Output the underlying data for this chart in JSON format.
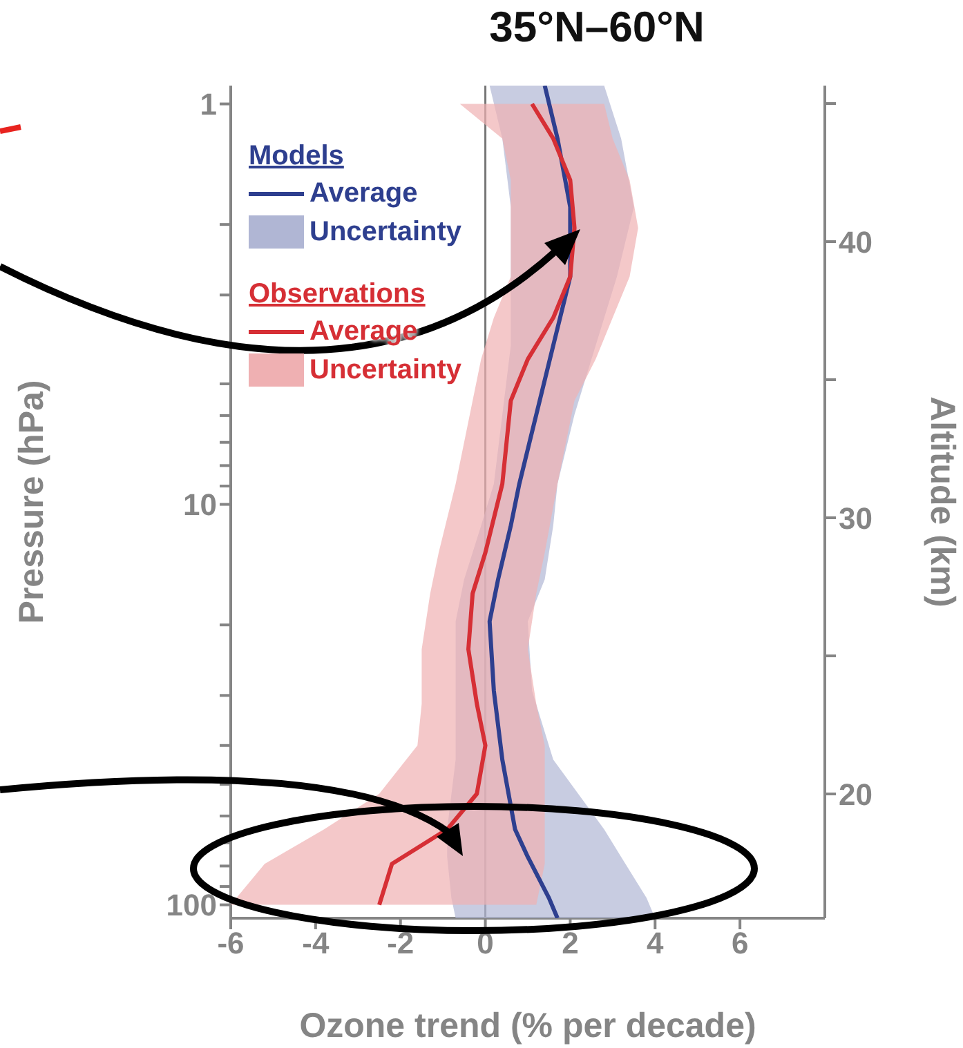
{
  "chart_data": {
    "type": "line",
    "orientation": "horizontal",
    "title": "35°N–60°N",
    "xlabel": "Ozone trend (% per decade)",
    "ylabel": "Pressure (hPa)",
    "y2label": "Altitude (km)",
    "annotations": [
      "Models",
      "Uncertainty",
      "Observations",
      "Uncertainty"
    ],
    "xlim": [
      -6,
      8
    ],
    "xticks": [
      -6,
      -4,
      -2,
      0,
      2,
      4,
      6
    ],
    "ylim": [
      108,
      0.9
    ],
    "log": "y",
    "yticks": [
      1,
      {
        "value": 2,
        "label": null
      },
      {
        "value": 3,
        "label": null
      },
      {
        "value": 4,
        "label": null
      },
      {
        "value": 5,
        "label": null
      },
      {
        "value": 6,
        "label": null
      },
      {
        "value": 7,
        "label": null
      },
      {
        "value": 8,
        "label": null
      },
      {
        "value": 9,
        "label": null
      },
      10,
      {
        "value": 20,
        "label": null
      },
      {
        "value": 30,
        "label": null
      },
      {
        "value": 40,
        "label": null
      },
      {
        "value": 50,
        "label": null
      },
      {
        "value": 60,
        "label": null
      },
      {
        "value": 70,
        "label": null
      },
      {
        "value": 80,
        "label": null
      },
      {
        "value": 90,
        "label": null
      },
      100
    ],
    "y2lim": [
      15.5,
      45.65
    ],
    "y2ticks": [
      20,
      {
        "value": 25,
        "label": null
      },
      30,
      {
        "value": 35,
        "label": null
      },
      40,
      {
        "value": 45,
        "label": null
      }
    ],
    "legend": "top left",
    "grid": false,
    "ref_lines": [
      {
        "axis": "x",
        "value": 0,
        "color": "#777777"
      }
    ],
    "series": [
      {
        "name": "Average",
        "color": "#2e3f8f",
        "x": [
          0.9,
          1.22,
          1.81,
          2.7,
          4.01,
          5.97,
          8.89,
          11.3,
          15.4,
          19.6,
          29.2,
          43.4,
          64.8,
          75.9,
          96.2,
          108
        ],
        "values": [
          1.4,
          1.7,
          2.0,
          2.0,
          1.6,
          1.2,
          0.8,
          0.6,
          0.3,
          0.1,
          0.2,
          0.4,
          0.7,
          1.0,
          1.5,
          1.7
        ],
        "lower": [
          0.1,
          0.4,
          0.6,
          0.6,
          0.6,
          0.4,
          0.2,
          -0.1,
          -0.5,
          -0.7,
          -0.7,
          -0.7,
          -0.9,
          -0.9,
          -0.8,
          -0.7
        ],
        "upper": [
          2.8,
          3.2,
          3.5,
          3.1,
          2.6,
          2.1,
          1.7,
          1.6,
          1.4,
          1.0,
          1.1,
          1.6,
          2.8,
          3.2,
          3.8,
          4.0
        ]
      },
      {
        "name": "Average",
        "color": "#d62f35",
        "x": [
          1.0,
          1.22,
          1.55,
          2.04,
          2.7,
          3.42,
          4.34,
          5.51,
          8.89,
          13.2,
          16.7,
          23.0,
          31.5,
          40.0,
          52.8,
          64.8,
          79.0,
          100
        ],
        "values": [
          1.1,
          1.6,
          2.0,
          2.1,
          2.0,
          1.6,
          1.0,
          0.6,
          0.4,
          0.0,
          -0.3,
          -0.4,
          -0.2,
          0.0,
          -0.2,
          -0.9,
          -2.2,
          -2.5
        ],
        "lower": [
          -0.6,
          0.4,
          0.6,
          0.6,
          0.6,
          0.2,
          -0.1,
          -0.3,
          -0.7,
          -1.1,
          -1.3,
          -1.5,
          -1.5,
          -1.6,
          -2.5,
          -3.8,
          -5.2,
          -6.0
        ],
        "upper": [
          2.8,
          3.0,
          3.4,
          3.6,
          3.4,
          3.0,
          2.6,
          2.1,
          1.7,
          1.4,
          1.2,
          1.0,
          1.2,
          1.4,
          1.4,
          1.4,
          1.4,
          1.2
        ]
      }
    ]
  }
}
